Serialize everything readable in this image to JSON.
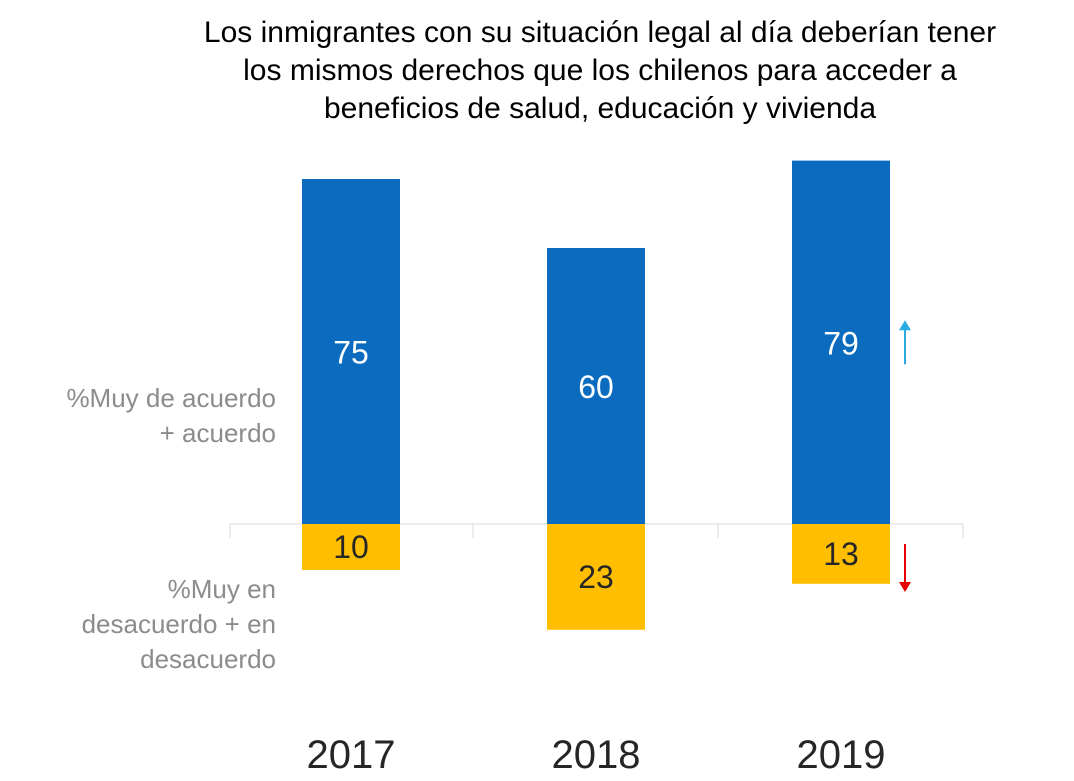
{
  "chart_data": {
    "type": "bar",
    "title_lines": [
      "Los inmigrantes con su situación legal al día deberían tener",
      "los mismos derechos que los chilenos para acceder a",
      "beneficios de salud, educación y vivienda"
    ],
    "categories": [
      "2017",
      "2018",
      "2019"
    ],
    "series": [
      {
        "name_lines": [
          "%Muy de acuerdo",
          "+ acuerdo"
        ],
        "values": [
          75,
          60,
          79
        ],
        "color": "#0a6bbf",
        "label_color": "#ffffff",
        "direction": "up"
      },
      {
        "name_lines": [
          "%Muy en",
          "desacuerdo + en",
          "desacuerdo"
        ],
        "values": [
          10,
          23,
          13
        ],
        "color": "#ffbf00",
        "label_color": "#262626",
        "direction": "down"
      }
    ],
    "trend_indicators": [
      {
        "category": "2019",
        "series": 0,
        "direction": "up",
        "icon": "arrow-up-icon",
        "color": "#29abe2"
      },
      {
        "category": "2019",
        "series": 1,
        "direction": "down",
        "icon": "arrow-down-icon",
        "color": "#e60000"
      }
    ],
    "grid": false,
    "colors": {
      "baseline": "#d9d9d9",
      "side_label": "#8c8c8c",
      "category_label": "#262626"
    }
  }
}
